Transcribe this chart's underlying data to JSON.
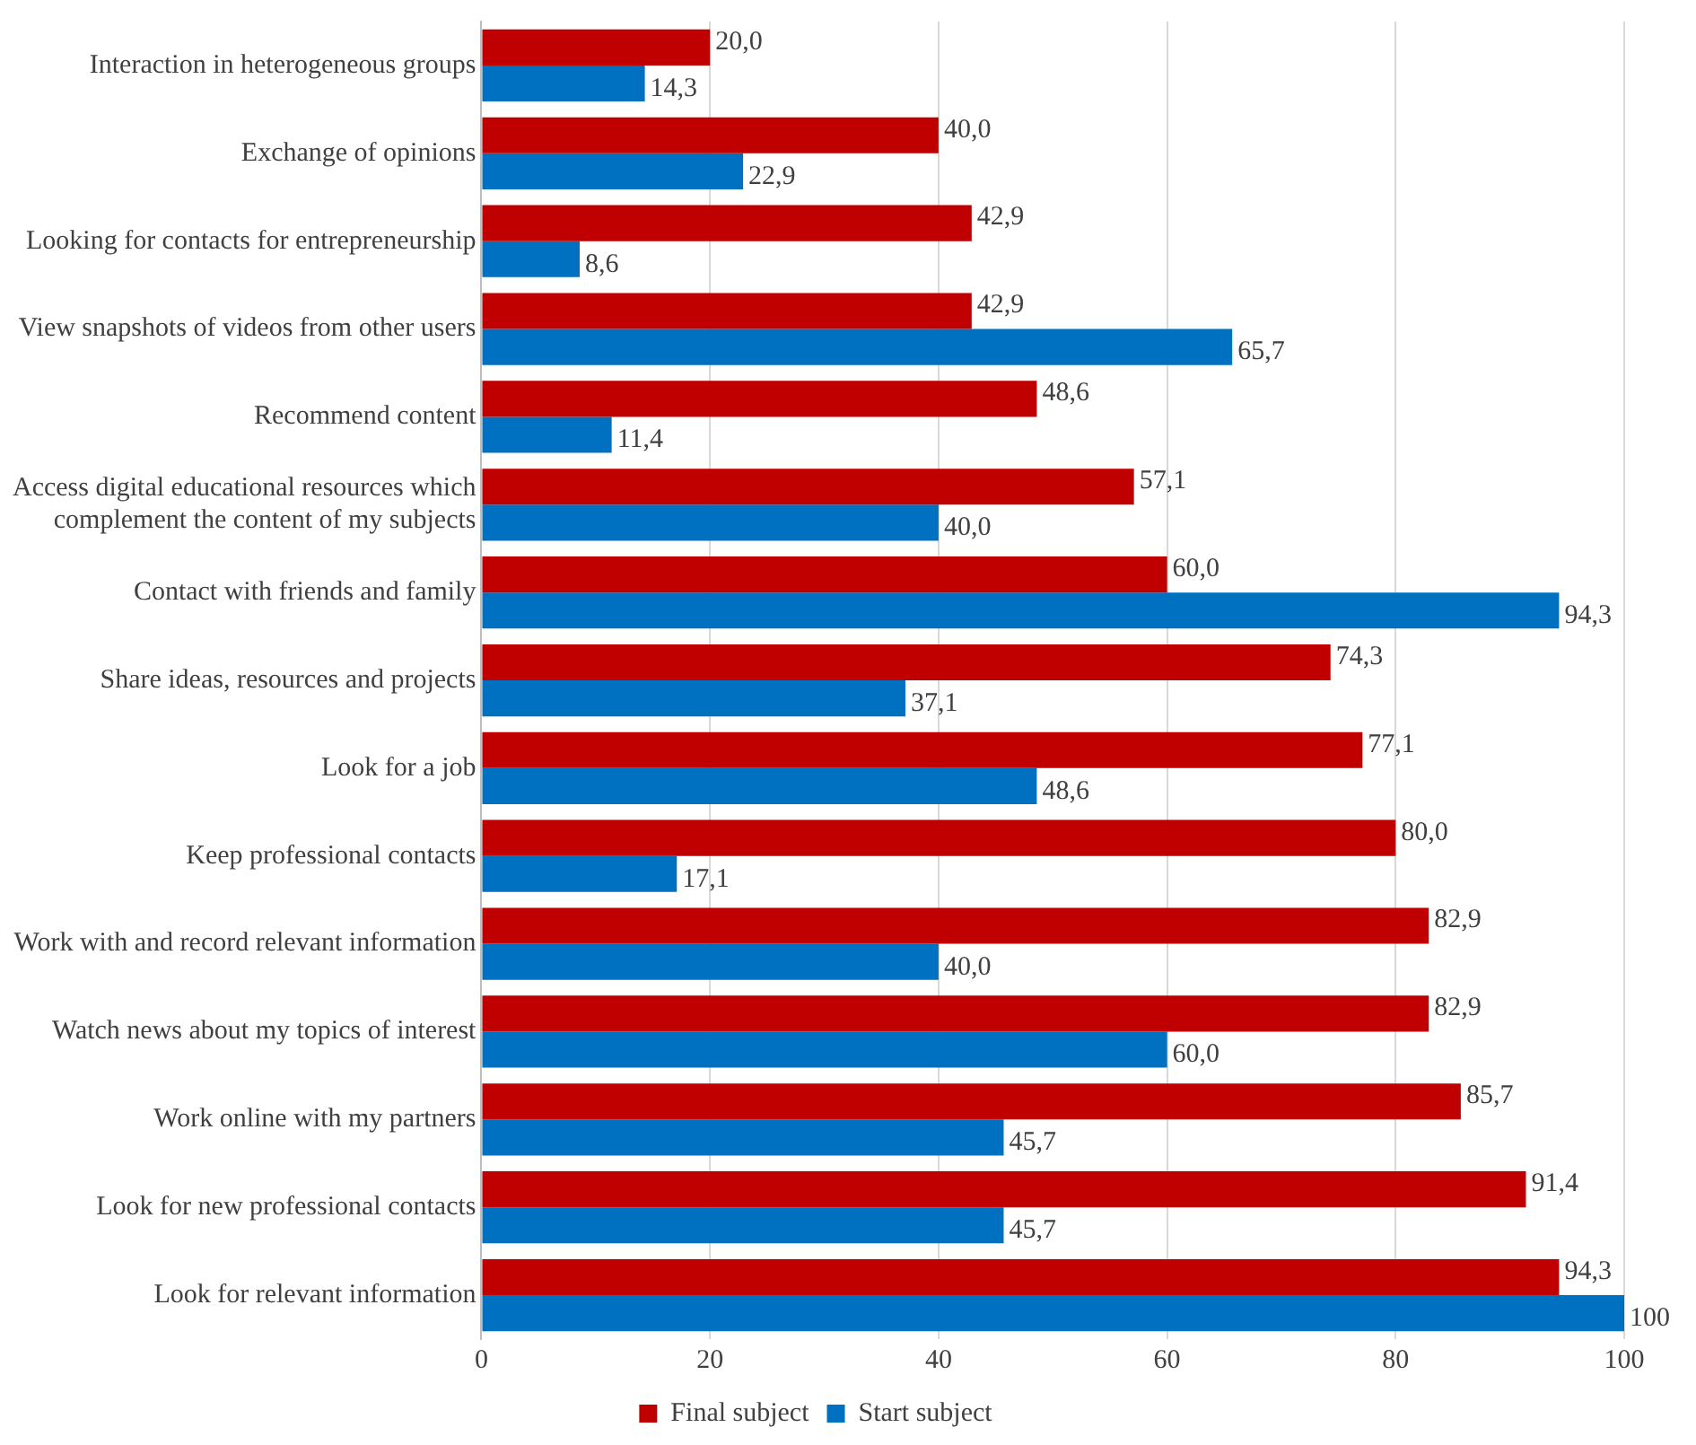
{
  "chart_data": {
    "type": "bar",
    "orientation": "horizontal",
    "categories": [
      "Interaction in heterogeneous groups",
      "Exchange of opinions",
      "Looking for contacts for entrepreneurship",
      "View snapshots of videos from other users",
      "Recommend content",
      "Access digital educational resources which complement the content of my subjects",
      "Contact with friends and family",
      "Share ideas, resources and projects",
      "Look for a job",
      "Keep professional contacts",
      "Work with and record relevant information",
      "Watch news about my topics of interest",
      "Work online with my partners",
      "Look for new professional contacts",
      "Look for relevant information"
    ],
    "series": [
      {
        "name": "Final subject",
        "color": "#c00000",
        "values": [
          20.0,
          40.0,
          42.9,
          42.9,
          48.6,
          57.1,
          60.0,
          74.3,
          77.1,
          80.0,
          82.9,
          82.9,
          85.7,
          91.4,
          94.3
        ],
        "value_labels": [
          "20,0",
          "40,0",
          "42,9",
          "42,9",
          "48,6",
          "57,1",
          "60,0",
          "74,3",
          "77,1",
          "80,0",
          "82,9",
          "82,9",
          "85,7",
          "91,4",
          "94,3"
        ]
      },
      {
        "name": "Start subject",
        "color": "#0070c0",
        "values": [
          14.3,
          22.9,
          8.6,
          65.7,
          11.4,
          40.0,
          94.3,
          37.1,
          48.6,
          17.1,
          40.0,
          60.0,
          45.7,
          45.7,
          100
        ],
        "value_labels": [
          "14,3",
          "22,9",
          "8,6",
          "65,7",
          "11,4",
          "40,0",
          "94,3",
          "37,1",
          "48,6",
          "17,1",
          "40,0",
          "60,0",
          "45,7",
          "45,7",
          "100"
        ]
      }
    ],
    "xlim": [
      0,
      100
    ],
    "xticks": [
      0,
      20,
      40,
      60,
      80,
      100
    ],
    "grid": "x",
    "legend": "bottom"
  }
}
